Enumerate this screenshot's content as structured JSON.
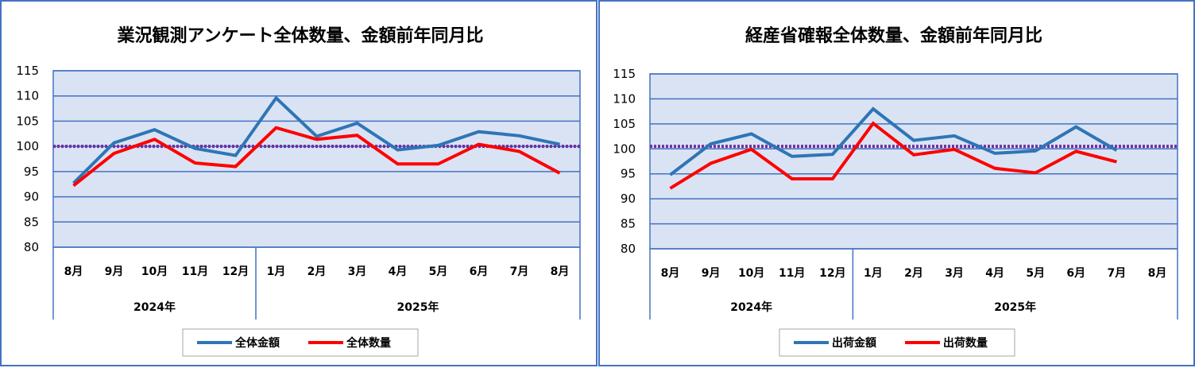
{
  "colors": {
    "amount_line": "#2e75b6",
    "quantity_line": "#ff0000",
    "reference_line": "#7030a0",
    "plot_fill": "#dae3f3",
    "grid": "#4472c4",
    "frame": "#4472c4"
  },
  "chart_data": [
    {
      "type": "line",
      "title": "業況観測アンケート全体数量、金額前年同月比",
      "categories": [
        "8月",
        "9月",
        "10月",
        "11月",
        "12月",
        "1月",
        "2月",
        "3月",
        "4月",
        "5月",
        "6月",
        "7月",
        "8月"
      ],
      "groups": [
        {
          "label": "2024年",
          "span": [
            0,
            4
          ]
        },
        {
          "label": "2025年",
          "span": [
            5,
            12
          ]
        }
      ],
      "yticks": [
        80,
        85,
        90,
        95,
        100,
        105,
        110,
        115
      ],
      "ylim": [
        80,
        115
      ],
      "reference_value": 100,
      "series": [
        {
          "name": "全体金額",
          "color_key": "amount_line",
          "values": [
            92.7,
            100.7,
            103.3,
            99.6,
            98.2,
            109.6,
            102.0,
            104.6,
            99.3,
            100.2,
            102.9,
            102.1,
            100.4
          ]
        },
        {
          "name": "全体数量",
          "color_key": "quantity_line",
          "values": [
            92.2,
            98.6,
            101.4,
            96.7,
            96.0,
            103.7,
            101.4,
            102.2,
            96.5,
            96.5,
            100.4,
            99.0,
            94.7
          ]
        }
      ]
    },
    {
      "type": "line",
      "title": "経産省確報全体数量、金額前年同月比",
      "categories": [
        "8月",
        "9月",
        "10月",
        "11月",
        "12月",
        "1月",
        "2月",
        "3月",
        "4月",
        "5月",
        "6月",
        "7月",
        "8月"
      ],
      "groups": [
        {
          "label": "2024年",
          "span": [
            0,
            4
          ]
        },
        {
          "label": "2025年",
          "span": [
            5,
            12
          ]
        }
      ],
      "yticks": [
        80,
        85,
        90,
        95,
        100,
        105,
        110,
        115
      ],
      "ylim": [
        80,
        115
      ],
      "reference_value": 100.5,
      "series": [
        {
          "name": "出荷金額",
          "color_key": "amount_line",
          "values": [
            94.8,
            101.0,
            103.0,
            98.5,
            98.9,
            108.0,
            101.7,
            102.6,
            99.1,
            99.6,
            104.4,
            99.7,
            null
          ]
        },
        {
          "name": "出荷数量",
          "color_key": "quantity_line",
          "values": [
            92.1,
            97.1,
            99.9,
            94.0,
            94.0,
            105.1,
            98.8,
            99.9,
            96.1,
            95.2,
            99.5,
            97.4,
            null
          ]
        }
      ]
    }
  ]
}
